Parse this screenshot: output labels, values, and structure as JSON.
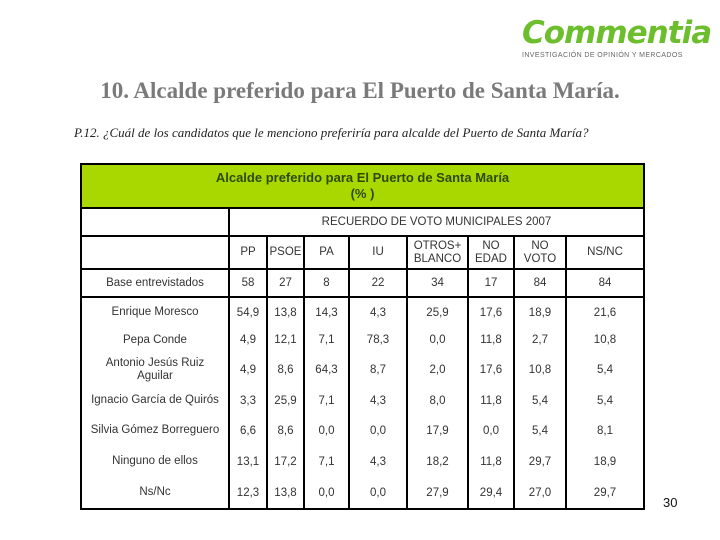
{
  "logo": {
    "name": "Commentia",
    "tagline": "INVESTIGACIÓN DE OPINIÓN Y MERCADOS",
    "color": "#6cbe2c"
  },
  "title": "10. Alcalde preferido para El Puerto de Santa María.",
  "question": "P.12. ¿Cuál de los candidatos que le menciono preferiría para alcalde del Puerto de Santa María?",
  "table": {
    "title_line1": "Alcalde preferido para El Puerto de Santa María",
    "title_line2": "(% )",
    "header_color": "#a8d800",
    "group_header": "RECUERDO DE VOTO MUNICIPALES 2007",
    "columns": [
      "PP",
      "PSOE",
      "PA",
      "IU",
      "OTROS+ BLANCO",
      "NO EDAD",
      "NO VOTO",
      "NS/NC"
    ],
    "base": {
      "label": "Base entrevistados",
      "values": [
        "58",
        "27",
        "8",
        "22",
        "34",
        "17",
        "84",
        "84"
      ]
    },
    "rows": [
      {
        "label": "Enrique Moresco",
        "values": [
          "54,9",
          "13,8",
          "14,3",
          "4,3",
          "25,9",
          "17,6",
          "18,9",
          "21,6"
        ]
      },
      {
        "label": "Pepa Conde",
        "values": [
          "4,9",
          "12,1",
          "7,1",
          "78,3",
          "0,0",
          "11,8",
          "2,7",
          "10,8"
        ]
      },
      {
        "label": "Antonio Jesús Ruiz Aguilar",
        "values": [
          "4,9",
          "8,6",
          "64,3",
          "8,7",
          "2,0",
          "17,6",
          "10,8",
          "5,4"
        ]
      },
      {
        "label": "Ignacio García de Quirós",
        "values": [
          "3,3",
          "25,9",
          "7,1",
          "4,3",
          "8,0",
          "11,8",
          "5,4",
          "5,4"
        ]
      },
      {
        "label": "Silvia Gómez Borreguero",
        "values": [
          "6,6",
          "8,6",
          "0,0",
          "0,0",
          "17,9",
          "0,0",
          "5,4",
          "8,1"
        ]
      },
      {
        "label": "Ninguno de ellos",
        "values": [
          "13,1",
          "17,2",
          "7,1",
          "4,3",
          "18,2",
          "11,8",
          "29,7",
          "18,9"
        ]
      },
      {
        "label": "Ns/Nc",
        "values": [
          "12,3",
          "13,8",
          "0,0",
          "0,0",
          "27,9",
          "29,4",
          "27,0",
          "29,7"
        ]
      }
    ]
  },
  "page_number": "30"
}
